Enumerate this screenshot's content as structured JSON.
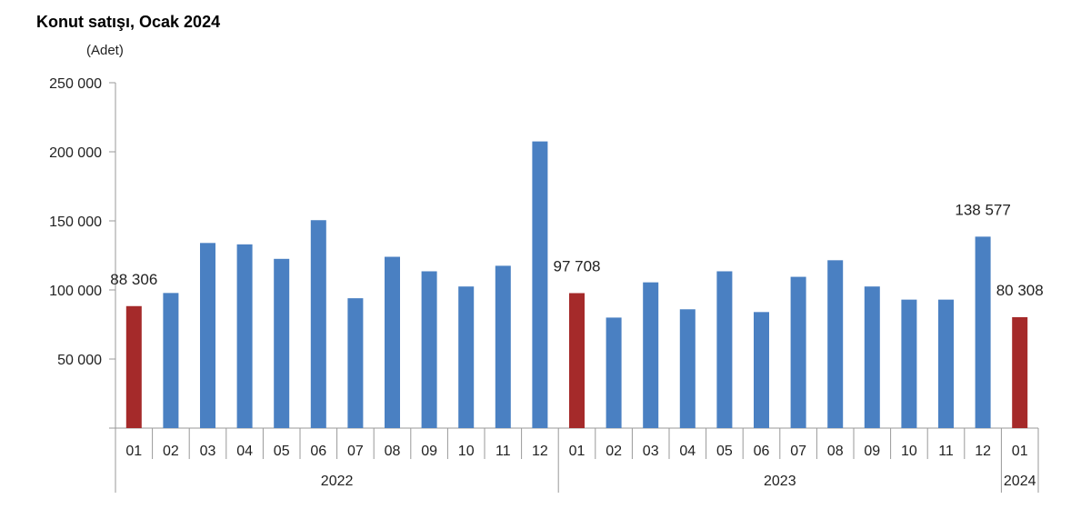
{
  "title": "Konut satışı, Ocak 2024",
  "unit_label": "(Adet)",
  "chart_data": {
    "type": "bar",
    "title": "Konut satışı, Ocak 2024",
    "ylabel": "(Adet)",
    "xlabel": "",
    "ylim": [
      0,
      250000
    ],
    "yticks": [
      0,
      50000,
      100000,
      150000,
      200000,
      250000
    ],
    "ytick_labels": [
      "",
      "50 000",
      "100 000",
      "150 000",
      "200 000",
      "250 000"
    ],
    "grid": false,
    "categories": [
      "01",
      "02",
      "03",
      "04",
      "05",
      "06",
      "07",
      "08",
      "09",
      "10",
      "11",
      "12",
      "01",
      "02",
      "03",
      "04",
      "05",
      "06",
      "07",
      "08",
      "09",
      "10",
      "11",
      "12",
      "01"
    ],
    "year_groups": [
      {
        "label": "2022",
        "count": 12
      },
      {
        "label": "2023",
        "count": 12
      },
      {
        "label": "2024",
        "count": 1
      }
    ],
    "values": [
      88306,
      97800,
      134000,
      133000,
      122500,
      150500,
      94000,
      124000,
      113500,
      102500,
      117500,
      207500,
      97708,
      80000,
      105500,
      86000,
      113500,
      84000,
      109500,
      121500,
      102500,
      93000,
      93000,
      138577,
      80308
    ],
    "highlight_indices": [
      0,
      12,
      24
    ],
    "data_labels": [
      {
        "index": 0,
        "text": "88 306"
      },
      {
        "index": 12,
        "text": "97 708"
      },
      {
        "index": 23,
        "text": "138 577"
      },
      {
        "index": 24,
        "text": "80 308"
      }
    ],
    "colors": {
      "default": "#4a80c2",
      "highlight": "#a52a2a"
    }
  }
}
